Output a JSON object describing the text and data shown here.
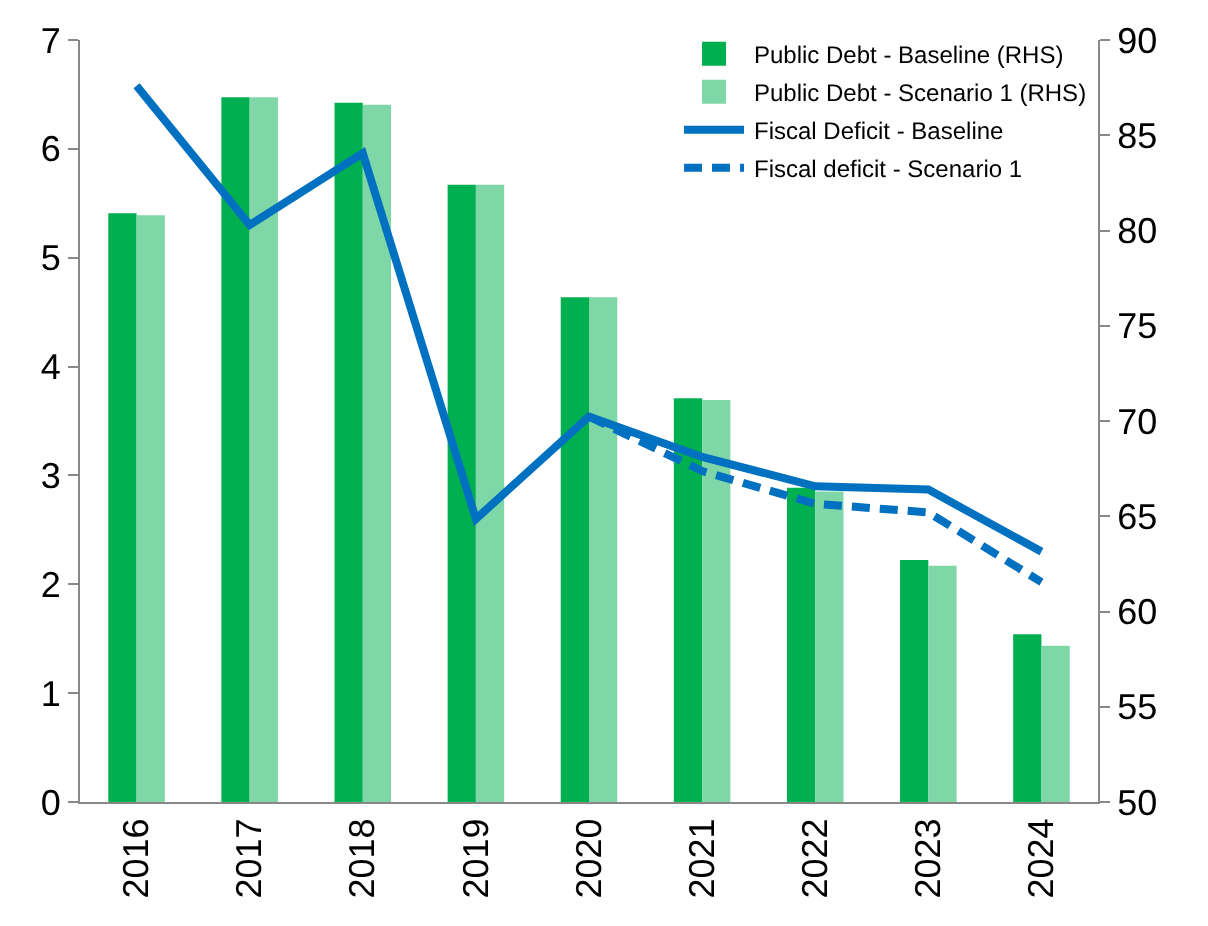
{
  "chart_data": {
    "type": "bar",
    "categories": [
      "2016",
      "2017",
      "2018",
      "2019",
      "2020",
      "2021",
      "2022",
      "2023",
      "2024"
    ],
    "series": [
      {
        "name": "Public Debt - Baseline (RHS)",
        "axis": "y2",
        "color": "#00b050",
        "values": [
          80.9,
          87.0,
          86.7,
          82.4,
          76.5,
          71.2,
          66.5,
          62.7,
          58.8
        ]
      },
      {
        "name": "Public Debt - Scenario 1 (RHS)",
        "axis": "y2",
        "color": "#7fd7a7",
        "values": [
          80.8,
          87.0,
          86.6,
          82.4,
          76.5,
          71.1,
          66.3,
          62.4,
          58.2
        ]
      },
      {
        "name": "Fiscal Deficit - Baseline",
        "type": "line",
        "color": "#0070c0",
        "line_style": "solid",
        "values": [
          6.58,
          5.3,
          5.96,
          2.6,
          3.54,
          3.17,
          2.9,
          2.87,
          2.3
        ]
      },
      {
        "name": "Fiscal deficit - Scenario 1",
        "type": "line",
        "color": "#0070c0",
        "line_style": "dashed",
        "values": [
          null,
          null,
          null,
          null,
          3.54,
          3.04,
          2.74,
          2.66,
          2.02
        ]
      }
    ],
    "ylim": [
      0,
      7
    ],
    "yticks": [
      0,
      1,
      2,
      3,
      4,
      5,
      6,
      7
    ],
    "y2lim": [
      50,
      90
    ],
    "y2ticks": [
      50,
      55,
      60,
      65,
      70,
      75,
      80,
      85,
      90
    ],
    "grid": false,
    "legend": "top right"
  }
}
